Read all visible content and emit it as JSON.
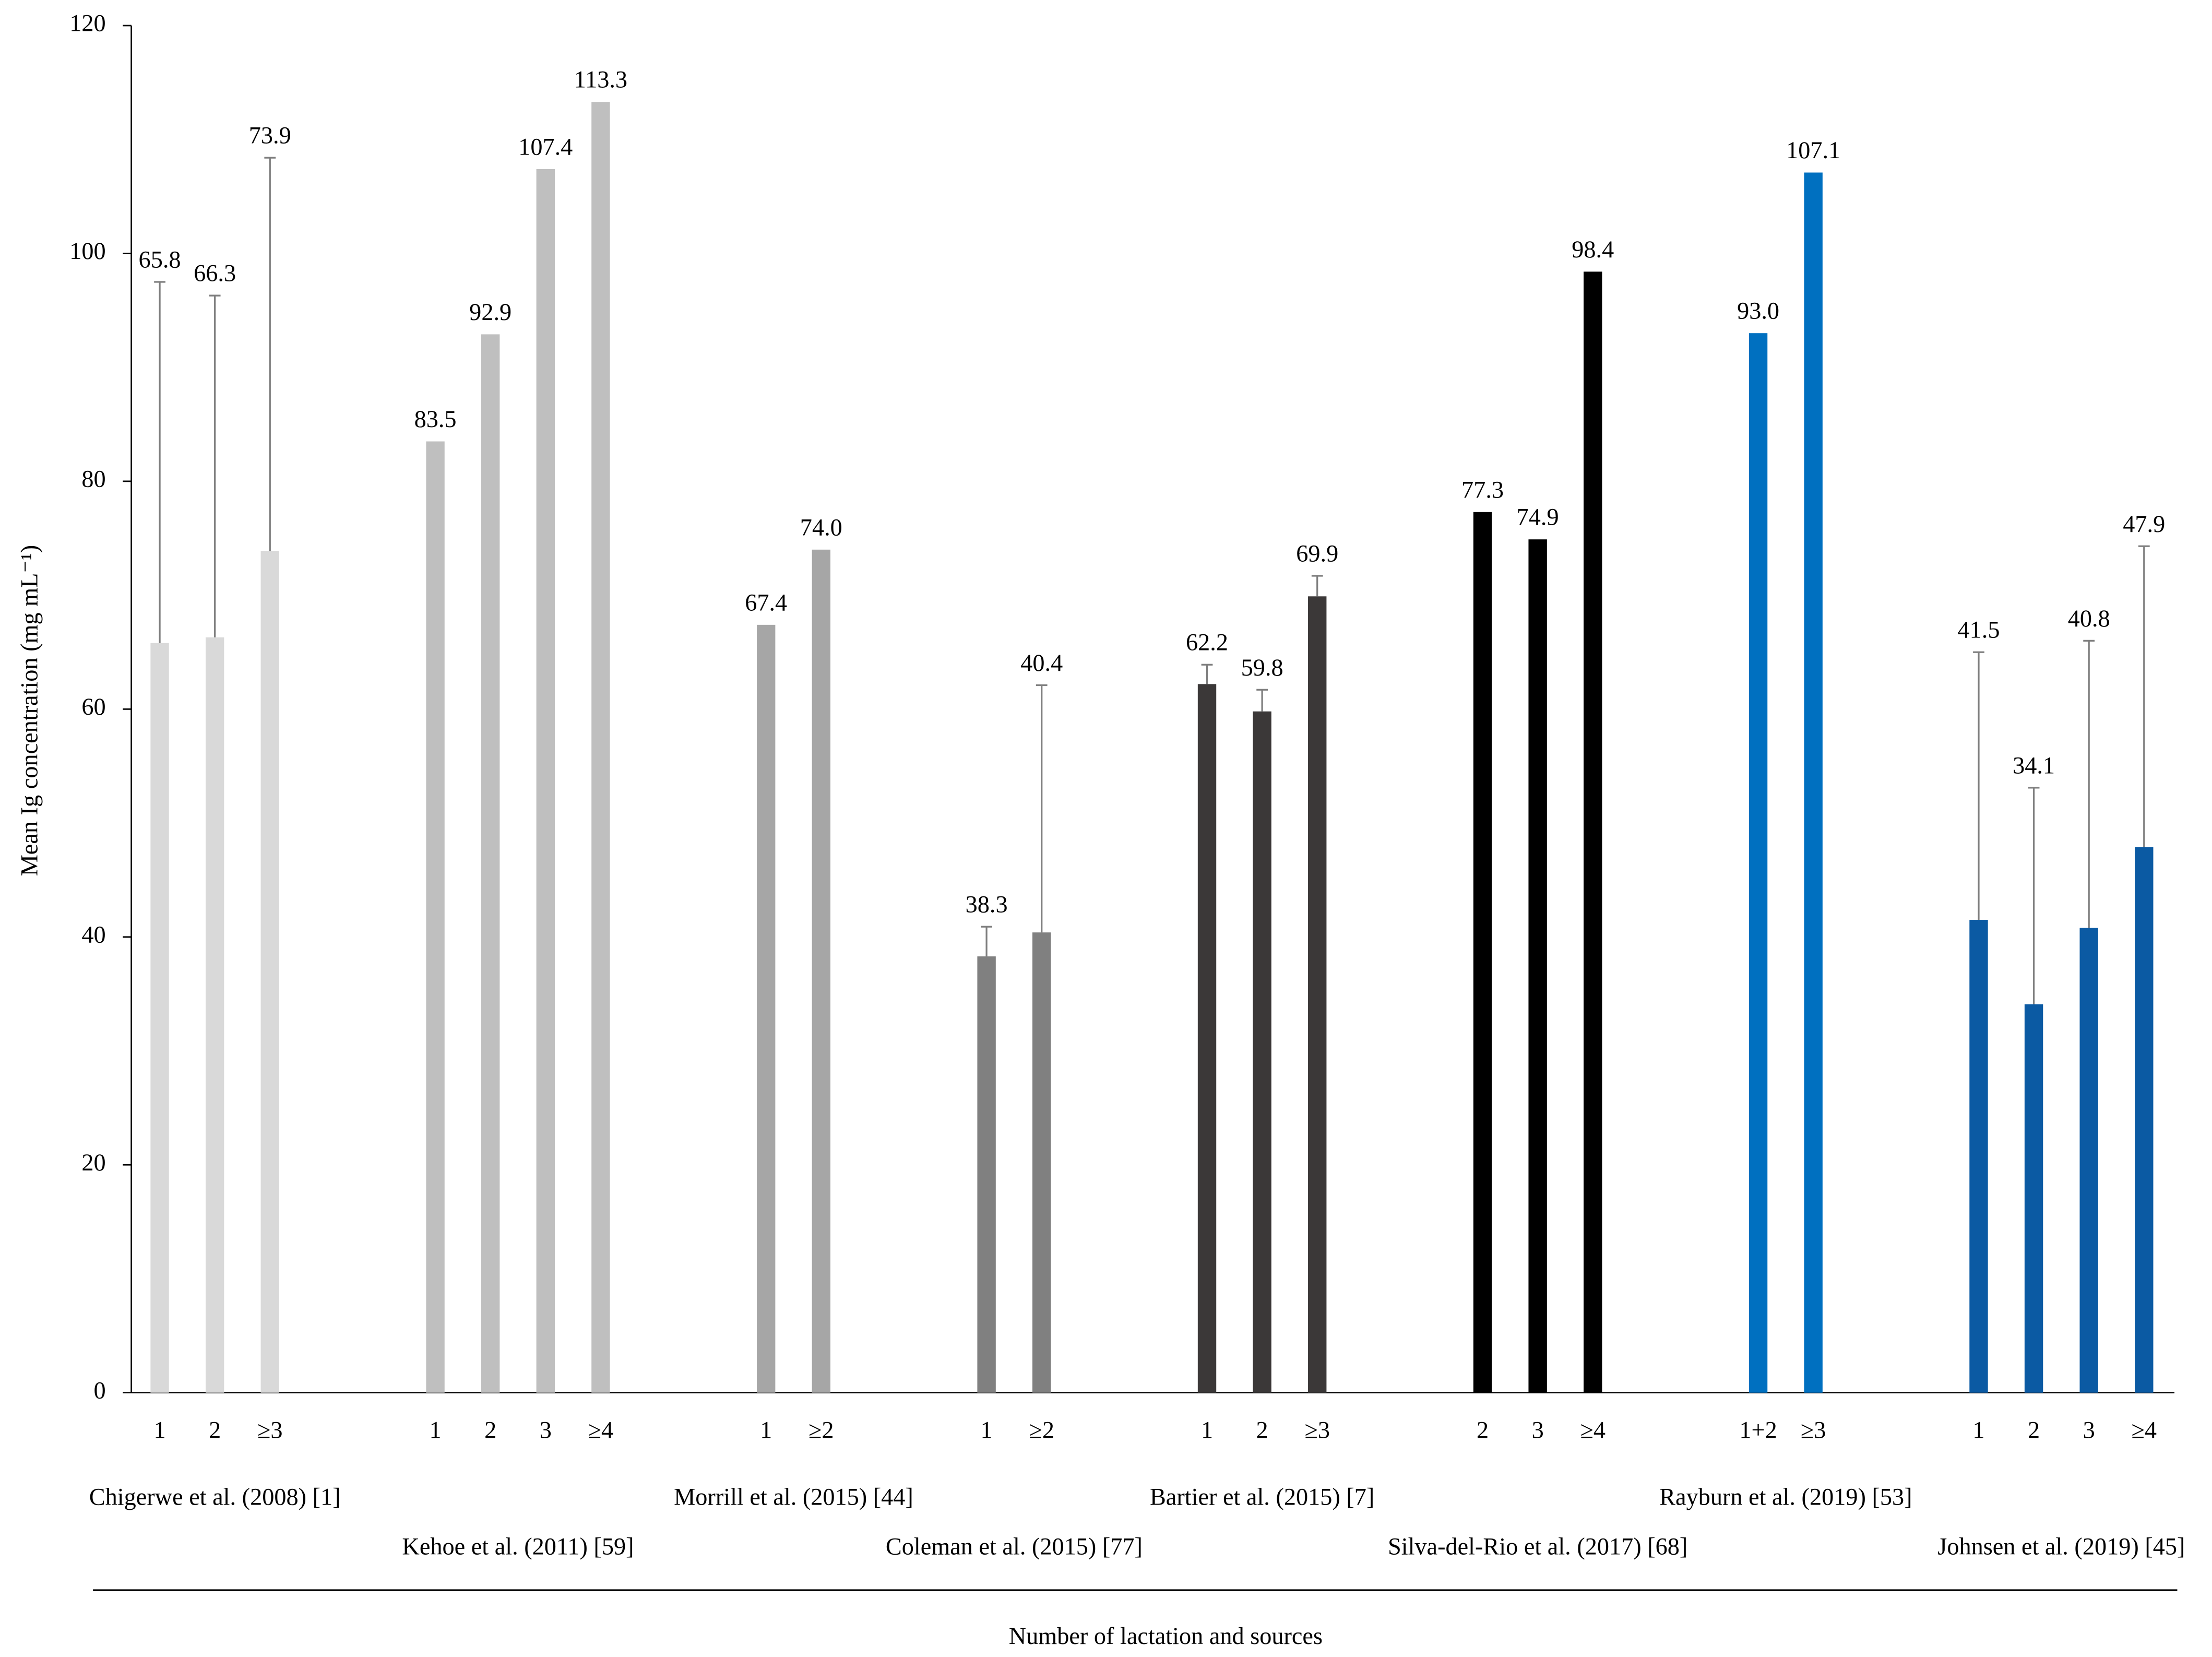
{
  "chart_data": {
    "type": "grouped-bar",
    "y_label": "Mean Ig concentration (mg mL⁻¹)",
    "x_label": "Number of lactation and sources",
    "ylim": [
      0,
      120
    ],
    "yticks": [
      0,
      20,
      40,
      60,
      80,
      100,
      120
    ],
    "error_color": "#7f7f7f",
    "groups": [
      {
        "name": "Chigerwe et al. (2008) [1]",
        "color": "#d9d9d9",
        "categories": [
          "1",
          "2",
          "≥3"
        ],
        "values": [
          65.8,
          66.3,
          73.9
        ],
        "value_labels": [
          "65.8",
          "66.3",
          "73.9"
        ],
        "errors": [
          31.7,
          30.0,
          34.5
        ]
      },
      {
        "name": "Kehoe et al. (2011) [59]",
        "color": "#bfbfbf",
        "categories": [
          "1",
          "2",
          "3",
          "≥4"
        ],
        "values": [
          83.5,
          92.9,
          107.4,
          113.3
        ],
        "value_labels": [
          "83.5",
          "92.9",
          "107.4",
          "113.3"
        ],
        "errors": [
          null,
          null,
          null,
          null
        ]
      },
      {
        "name": "Morrill et al. (2015) [44]",
        "color": "#a6a6a6",
        "categories": [
          "1",
          "≥2"
        ],
        "values": [
          67.4,
          74.0
        ],
        "value_labels": [
          "67.4",
          "74.0"
        ],
        "errors": [
          null,
          null
        ]
      },
      {
        "name": "Coleman et al. (2015) [77]",
        "color": "#808080",
        "categories": [
          "1",
          "≥2"
        ],
        "values": [
          38.3,
          40.4
        ],
        "value_labels": [
          "38.3",
          "40.4"
        ],
        "errors": [
          2.6,
          21.7
        ]
      },
      {
        "name": "Bartier et al. (2015) [7]",
        "color": "#3b3838",
        "categories": [
          "1",
          "2",
          "≥3"
        ],
        "values": [
          62.2,
          59.8,
          69.9
        ],
        "value_labels": [
          "62.2",
          "59.8",
          "69.9"
        ],
        "errors": [
          1.7,
          1.9,
          1.8
        ]
      },
      {
        "name": "Silva-del-Rio et al. (2017) [68]",
        "color": "#000000",
        "categories": [
          "2",
          "3",
          "≥4"
        ],
        "values": [
          77.3,
          74.9,
          98.4
        ],
        "value_labels": [
          "77.3",
          "74.9",
          "98.4"
        ],
        "errors": [
          null,
          null,
          null
        ]
      },
      {
        "name": "Rayburn et al. (2019) [53]",
        "color": "#0070c0",
        "categories": [
          "1+2",
          "≥3"
        ],
        "values": [
          93.0,
          107.1
        ],
        "value_labels": [
          "93.0",
          "107.1"
        ],
        "errors": [
          null,
          null
        ]
      },
      {
        "name": "Johnsen et al. (2019) [45]",
        "color": "#0b5aa3",
        "categories": [
          "1",
          "2",
          "3",
          "≥4"
        ],
        "values": [
          41.5,
          34.1,
          40.8,
          47.9
        ],
        "value_labels": [
          "41.5",
          "34.1",
          "40.8",
          "47.9"
        ],
        "errors": [
          23.5,
          19.0,
          25.2,
          26.4
        ]
      }
    ]
  }
}
